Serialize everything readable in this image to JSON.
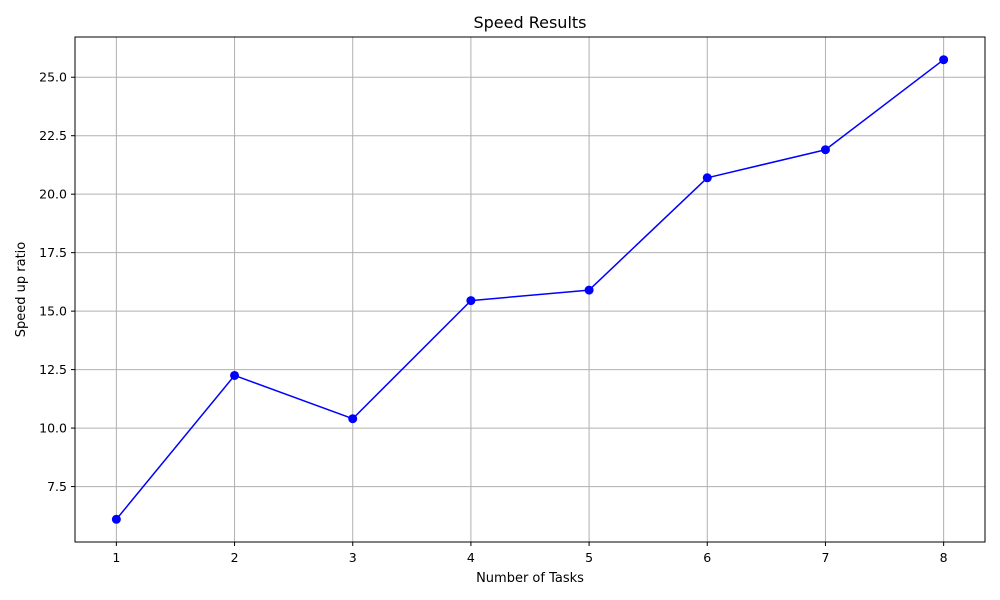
{
  "chart_data": {
    "type": "line",
    "title": "Speed Results",
    "xlabel": "Number of Tasks",
    "ylabel": "Speed up ratio",
    "x": [
      1,
      2,
      3,
      4,
      5,
      6,
      7,
      8
    ],
    "series": [
      {
        "values": [
          6.1,
          12.25,
          10.4,
          15.45,
          15.9,
          20.7,
          21.9,
          25.75
        ]
      }
    ],
    "xticks": [
      "1",
      "2",
      "3",
      "4",
      "5",
      "6",
      "7",
      "8"
    ],
    "yticks": [
      "7.5",
      "10.0",
      "12.5",
      "15.0",
      "17.5",
      "20.0",
      "22.5",
      "25.0"
    ],
    "xlim": [
      0.65,
      8.35
    ],
    "ylim": [
      5.13,
      26.72
    ],
    "grid": true,
    "line_color": "#0000ff",
    "marker": "circle"
  }
}
